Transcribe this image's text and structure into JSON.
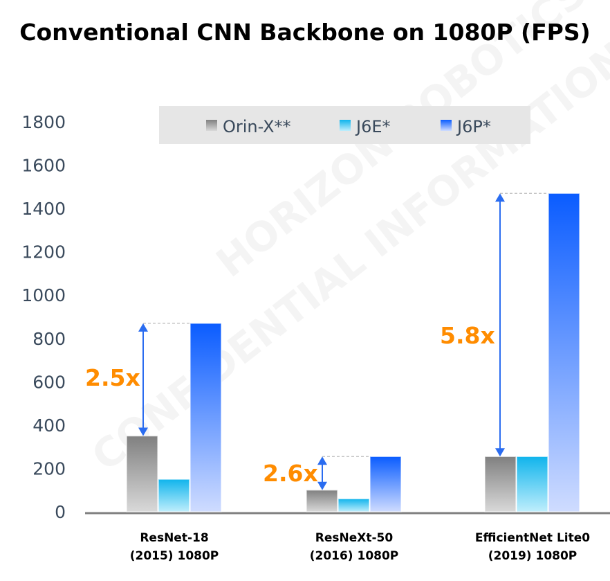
{
  "chart_data": {
    "type": "bar",
    "title": "Conventional CNN Backbone on 1080P (FPS)",
    "xlabel": "",
    "ylabel": "",
    "ylim": [
      0,
      1800
    ],
    "yticks": [
      0,
      200,
      400,
      600,
      800,
      1000,
      1200,
      1400,
      1600,
      1800
    ],
    "categories": [
      [
        "ResNet-18",
        "(2015) 1080P"
      ],
      [
        "ResNeXt-50",
        "(2016) 1080P"
      ],
      [
        "EfficientNet Lite0",
        "(2019) 1080P"
      ]
    ],
    "series": [
      {
        "name": "Orin-X**",
        "values": [
          350,
          100,
          255
        ],
        "color_top": "#808080",
        "color_bottom": "#d9d9d9"
      },
      {
        "name": "J6E*",
        "values": [
          150,
          60,
          255
        ],
        "color_top": "#10b4ec",
        "color_bottom": "#bfeefc"
      },
      {
        "name": "J6P*",
        "values": [
          870,
          255,
          1470
        ],
        "color_top": "#0a5cff",
        "color_bottom": "#cfdcff"
      }
    ],
    "legend": "top-center",
    "annotations": [
      "2.5x",
      "2.6x",
      "5.8x"
    ],
    "annotation_color": "#ff8c00",
    "arrow_color": "#2a6cf0"
  },
  "watermark": [
    "HORIZON ROBOTICS",
    "CONFIDENTIAL INFORMATION"
  ]
}
